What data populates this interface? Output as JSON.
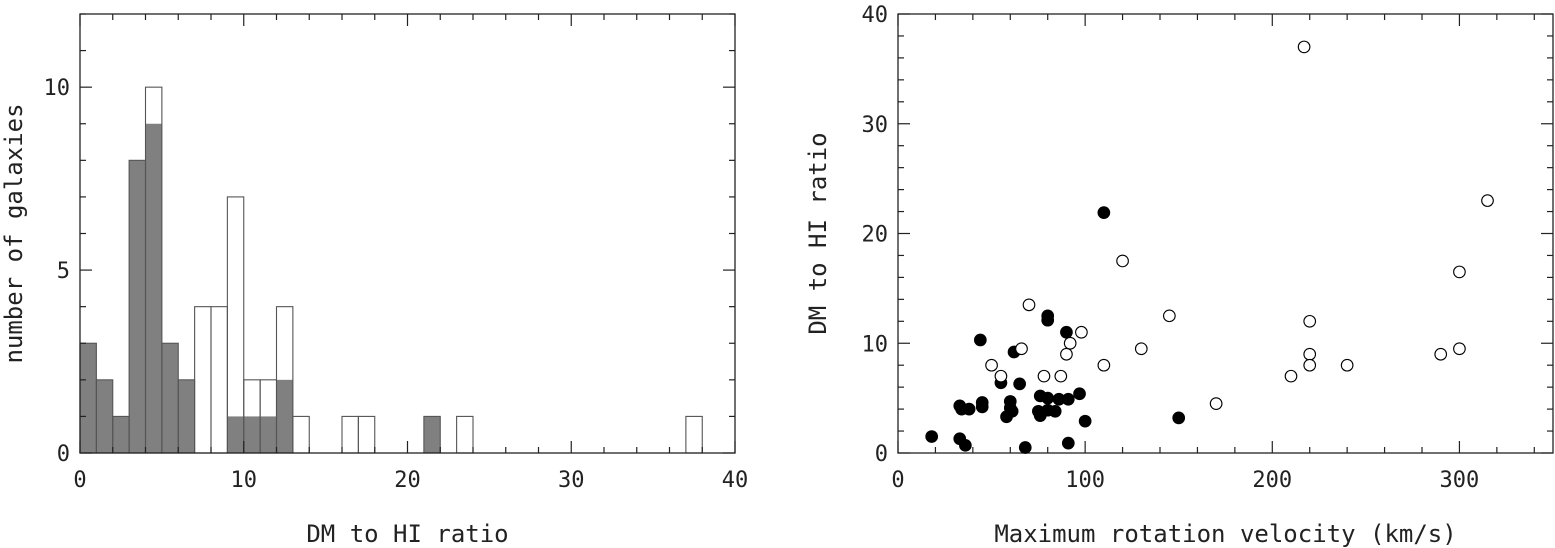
{
  "chart_data": [
    {
      "type": "bar",
      "subtype": "histogram",
      "xlabel": "DM to HI ratio",
      "ylabel": "number of galaxies",
      "xlim": [
        0,
        40
      ],
      "ylim": [
        0,
        12
      ],
      "xticks": [
        0,
        10,
        20,
        30,
        40
      ],
      "yticks": [
        0,
        5,
        10
      ],
      "bin_width": 1,
      "bin_edges_start": 0,
      "series": [
        {
          "style": "outline",
          "values": [
            3,
            2,
            1,
            8,
            10,
            3,
            2,
            4,
            4,
            7,
            2,
            2,
            4,
            1,
            0,
            0,
            1,
            1,
            0,
            0,
            0,
            1,
            0,
            1,
            0,
            0,
            0,
            0,
            0,
            0,
            0,
            0,
            0,
            0,
            0,
            0,
            0,
            1,
            0,
            0
          ]
        },
        {
          "style": "filled",
          "color": "#808080",
          "values": [
            3,
            2,
            1,
            8,
            9,
            3,
            2,
            0,
            0,
            1,
            1,
            1,
            2,
            0,
            0,
            0,
            0,
            0,
            0,
            0,
            0,
            1,
            0,
            0,
            0,
            0,
            0,
            0,
            0,
            0,
            0,
            0,
            0,
            0,
            0,
            0,
            0,
            0,
            0,
            0
          ]
        }
      ]
    },
    {
      "type": "scatter",
      "xlabel": "Maximum rotation velocity (km/s)",
      "ylabel": "DM to HI ratio",
      "xlim": [
        0,
        350
      ],
      "ylim": [
        0,
        40
      ],
      "xticks": [
        0,
        100,
        200,
        300
      ],
      "yticks": [
        0,
        10,
        20,
        30,
        40
      ],
      "series": [
        {
          "marker": "filled-circle",
          "points": [
            [
              18,
              1.5
            ],
            [
              33,
              1.3
            ],
            [
              36,
              0.7
            ],
            [
              33,
              4.3
            ],
            [
              34,
              4.0
            ],
            [
              38,
              4.0
            ],
            [
              44,
              10.3
            ],
            [
              45,
              4.2
            ],
            [
              45,
              4.6
            ],
            [
              55,
              6.4
            ],
            [
              58,
              3.3
            ],
            [
              60,
              4.1
            ],
            [
              60,
              4.7
            ],
            [
              61,
              3.8
            ],
            [
              62,
              9.2
            ],
            [
              65,
              6.3
            ],
            [
              68,
              0.5
            ],
            [
              75,
              3.8
            ],
            [
              76,
              5.2
            ],
            [
              76,
              3.4
            ],
            [
              80,
              12.5
            ],
            [
              80,
              12.1
            ],
            [
              80,
              5.0
            ],
            [
              80,
              3.9
            ],
            [
              84,
              3.8
            ],
            [
              86,
              4.9
            ],
            [
              90,
              11.0
            ],
            [
              91,
              0.9
            ],
            [
              91,
              4.9
            ],
            [
              97,
              5.4
            ],
            [
              100,
              2.9
            ],
            [
              110,
              21.9
            ],
            [
              150,
              3.2
            ]
          ]
        },
        {
          "marker": "open-circle",
          "points": [
            [
              50,
              8.0
            ],
            [
              55,
              7.0
            ],
            [
              66,
              9.5
            ],
            [
              70,
              13.5
            ],
            [
              78,
              7.0
            ],
            [
              87,
              7.0
            ],
            [
              90,
              9.0
            ],
            [
              92,
              10.0
            ],
            [
              98,
              11.0
            ],
            [
              110,
              8.0
            ],
            [
              120,
              17.5
            ],
            [
              130,
              9.5
            ],
            [
              145,
              12.5
            ],
            [
              170,
              4.5
            ],
            [
              210,
              7.0
            ],
            [
              217,
              37.0
            ],
            [
              220,
              9.0
            ],
            [
              220,
              8.0
            ],
            [
              220,
              12.0
            ],
            [
              240,
              8.0
            ],
            [
              290,
              9.0
            ],
            [
              300,
              9.5
            ],
            [
              300,
              16.5
            ],
            [
              315,
              23.0
            ]
          ]
        }
      ]
    }
  ]
}
